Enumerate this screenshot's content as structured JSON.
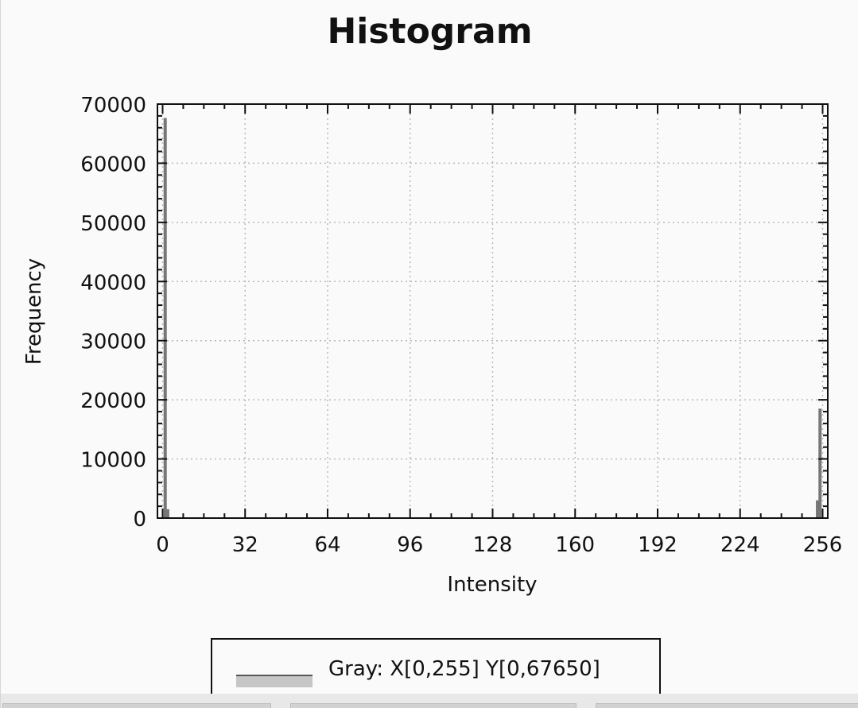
{
  "chart_data": {
    "type": "bar",
    "title": "Histogram",
    "xlabel": "Intensity",
    "ylabel": "Frequency",
    "xlim": [
      -2,
      258
    ],
    "ylim": [
      0,
      70000
    ],
    "xticks": [
      0,
      32,
      64,
      96,
      128,
      160,
      192,
      224,
      256
    ],
    "yticks": [
      0,
      10000,
      20000,
      30000,
      40000,
      50000,
      60000,
      70000
    ],
    "grid": true,
    "series": [
      {
        "name": "Gray",
        "color": "#777777",
        "points": [
          {
            "x": 1,
            "y": 67650
          },
          {
            "x": 2,
            "y": 1500
          },
          {
            "x": 254,
            "y": 3000
          },
          {
            "x": 255,
            "y": 18500
          }
        ]
      }
    ],
    "legend": {
      "position": "bottom",
      "label": "Gray: X[0,255] Y[0,67650]"
    }
  }
}
